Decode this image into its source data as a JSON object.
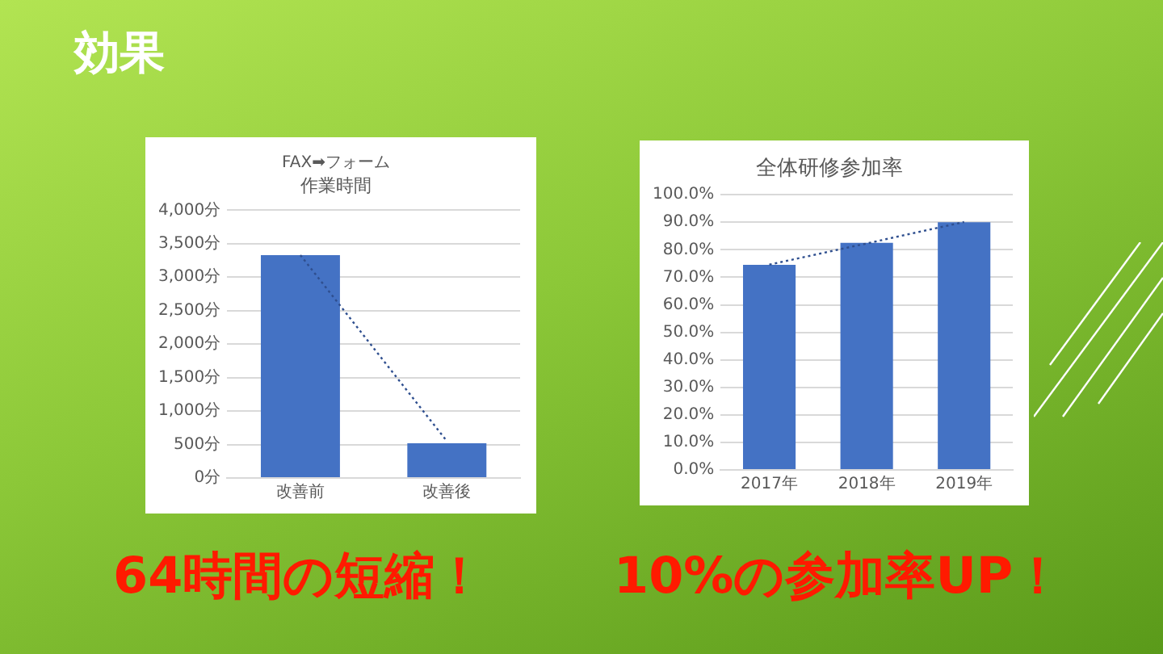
{
  "chart_data": [
    {
      "type": "bar",
      "title": "FAX➡フォーム",
      "subtitle": "作業時間",
      "categories": [
        "改善前",
        "改善後"
      ],
      "series": [
        {
          "color": "#4472c4",
          "values": [
            3330,
            520
          ]
        },
        {
          "type": "line",
          "color": "#2f4f8f",
          "values": [
            3330,
            550
          ],
          "line_style": "dotted",
          "marker": "none"
        }
      ],
      "ylim": [
        0,
        4000
      ],
      "yticks": [
        {
          "value": 0,
          "label": "0分"
        },
        {
          "value": 500,
          "label": "500分"
        },
        {
          "value": 1000,
          "label": "1,000分"
        },
        {
          "value": 1500,
          "label": "1,500分"
        },
        {
          "value": 2000,
          "label": "2,000分"
        },
        {
          "value": 2500,
          "label": "2,500分"
        },
        {
          "value": 3000,
          "label": "3,000分"
        },
        {
          "value": 3500,
          "label": "3,500分"
        },
        {
          "value": 4000,
          "label": "4,000分"
        }
      ],
      "grid": "y",
      "annotations": [
        "効果",
        "64時間の短縮！"
      ]
    },
    {
      "type": "bar",
      "title": "全体研修参加率",
      "categories": [
        "2017年",
        "2018年",
        "2019年"
      ],
      "series": [
        {
          "color": "#4472c4",
          "values": [
            74.5,
            82.5,
            90
          ]
        },
        {
          "type": "line",
          "color": "#2f4f8f",
          "values": [
            74.6,
            82.3,
            90.1
          ],
          "line_style": "dotted",
          "marker": "none"
        }
      ],
      "ylim": [
        0,
        100
      ],
      "yticks": [
        {
          "value": 0,
          "label": "0.0%"
        },
        {
          "value": 10,
          "label": "10.0%"
        },
        {
          "value": 20,
          "label": "20.0%"
        },
        {
          "value": 30,
          "label": "30.0%"
        },
        {
          "value": 40,
          "label": "40.0%"
        },
        {
          "value": 50,
          "label": "50.0%"
        },
        {
          "value": 60,
          "label": "60.0%"
        },
        {
          "value": 70,
          "label": "70.0%"
        },
        {
          "value": 80,
          "label": "80.0%"
        },
        {
          "value": 90,
          "label": "90.0%"
        },
        {
          "value": 100,
          "label": "100.0%"
        }
      ],
      "grid": "y",
      "annotations": [
        "10%の参加率UP！"
      ]
    }
  ]
}
